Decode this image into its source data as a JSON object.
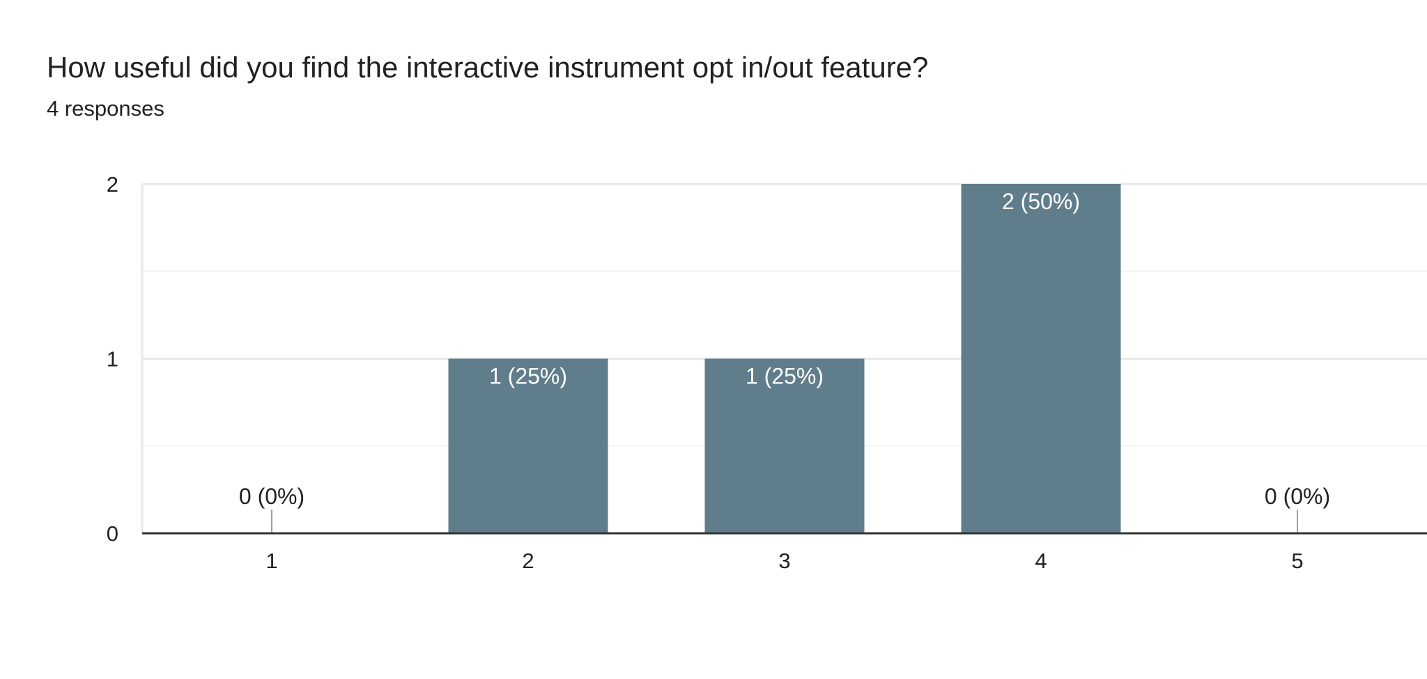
{
  "question": {
    "title": "How useful did you find the interactive instrument opt in/out feature?",
    "responses": "4 responses"
  },
  "chart_data": {
    "type": "bar",
    "categories": [
      "1",
      "2",
      "3",
      "4",
      "5"
    ],
    "values": [
      0,
      1,
      1,
      2,
      0
    ],
    "data_labels": [
      "0 (0%)",
      "1 (25%)",
      "1 (25%)",
      "2 (50%)",
      "0 (0%)"
    ],
    "ylim": [
      0,
      2
    ],
    "yticks": [
      "0",
      "1",
      "2"
    ],
    "grid": true,
    "bar_color": "#607d8b"
  }
}
